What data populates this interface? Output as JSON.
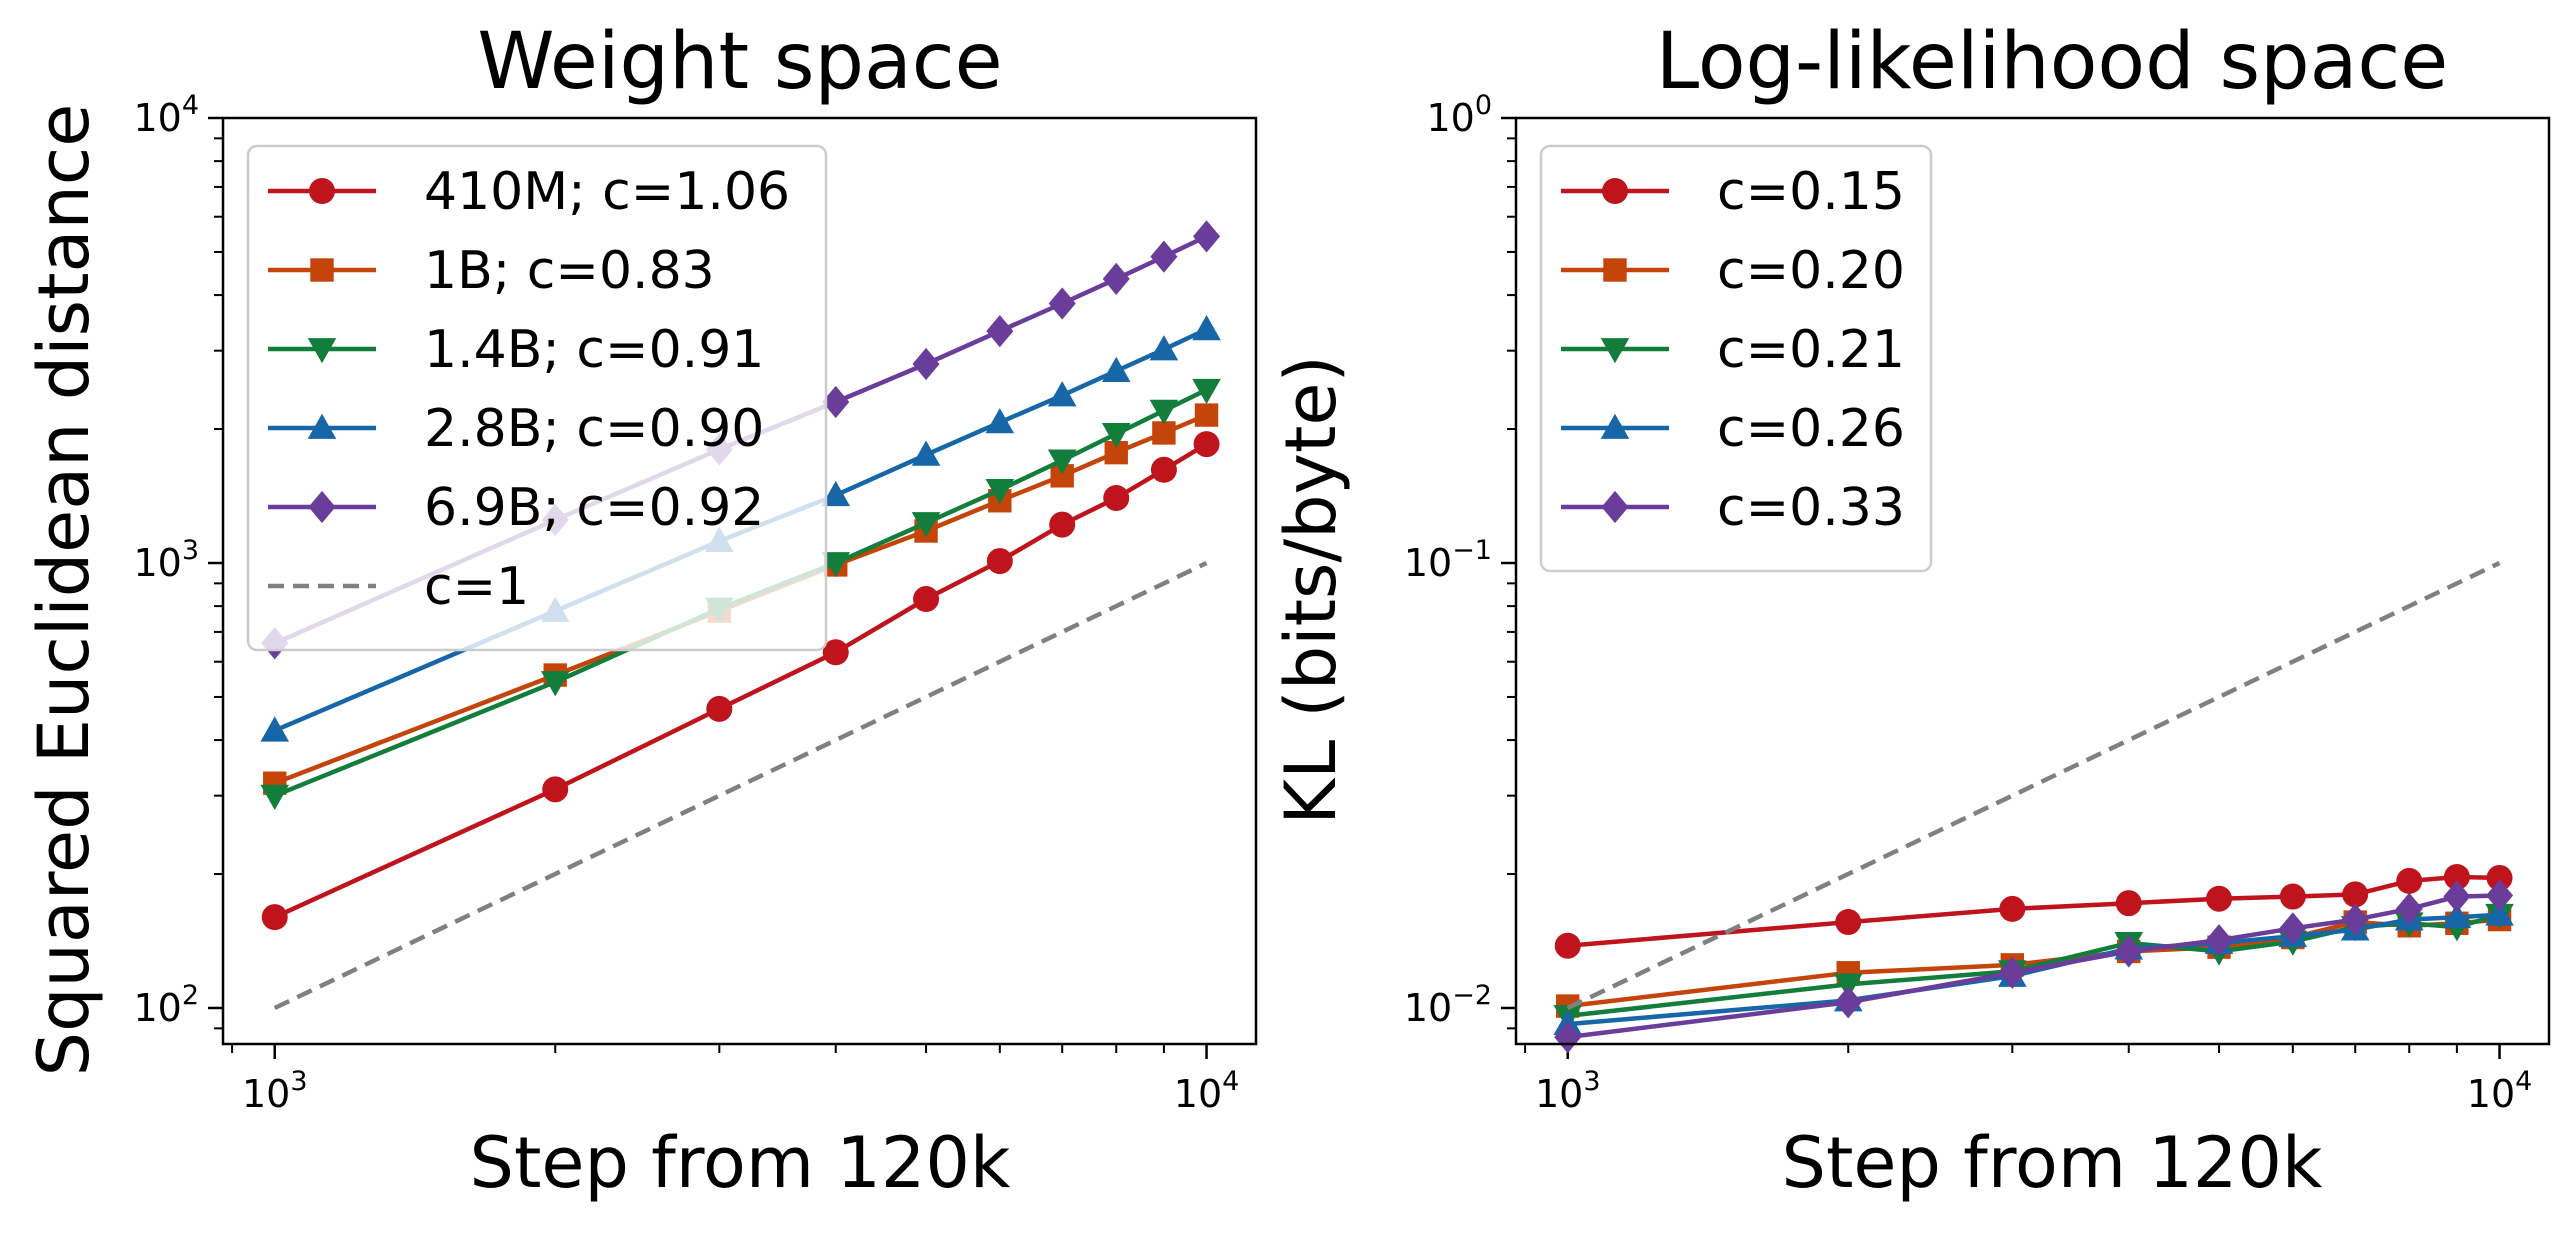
{
  "chart_data": [
    {
      "id": "weight",
      "type": "line",
      "scale": "log-log",
      "title": "Weight space",
      "xlabel": "Step from 120k",
      "ylabel": "Squared Euclidean distance",
      "xlim": [
        880,
        11300
      ],
      "ylim": [
        83,
        10000
      ],
      "xticks": [
        {
          "base": "10",
          "exp": "3",
          "value": 1000
        },
        {
          "base": "10",
          "exp": "4",
          "value": 10000
        }
      ],
      "yticks": [
        {
          "base": "10",
          "exp": "2",
          "value": 100
        },
        {
          "base": "10",
          "exp": "3",
          "value": 1000
        },
        {
          "base": "10",
          "exp": "4",
          "value": 10000
        }
      ],
      "legend_position": "top-left",
      "x": [
        1000,
        2000,
        3000,
        4000,
        5000,
        6000,
        7000,
        8000,
        9000,
        10000
      ],
      "series": [
        {
          "name": "410M; c=1.06",
          "color": "#c0141c",
          "marker": "circle",
          "values": [
            160,
            310,
            470,
            630,
            830,
            1010,
            1220,
            1400,
            1620,
            1850
          ]
        },
        {
          "name": "1B; c=0.83",
          "color": "#c4440a",
          "marker": "square",
          "values": [
            320,
            560,
            780,
            990,
            1180,
            1380,
            1570,
            1770,
            1960,
            2150
          ]
        },
        {
          "name": "1.4B; c=0.91",
          "color": "#137d3c",
          "marker": "triangle-down",
          "values": [
            300,
            540,
            790,
            1000,
            1230,
            1460,
            1700,
            1950,
            2200,
            2450
          ]
        },
        {
          "name": "2.8B; c=0.90",
          "color": "#1766a8",
          "marker": "triangle-up",
          "values": [
            420,
            780,
            1120,
            1420,
            1750,
            2070,
            2380,
            2700,
            3020,
            3350
          ]
        },
        {
          "name": "6.9B; c=0.92",
          "color": "#6a3d9a",
          "marker": "diamond",
          "values": [
            660,
            1250,
            1800,
            2300,
            2800,
            3320,
            3830,
            4350,
            4880,
            5420
          ]
        },
        {
          "name": "c=1",
          "color": "#808080",
          "marker": "none",
          "dashed": true,
          "values": [
            100,
            200,
            300,
            400,
            500,
            600,
            700,
            800,
            900,
            1000
          ]
        }
      ]
    },
    {
      "id": "loglik",
      "type": "line",
      "scale": "log-log",
      "title": "Log-likelihood space",
      "xlabel": "Step from 120k",
      "ylabel": "KL (bits/byte)",
      "xlim": [
        880,
        11300
      ],
      "ylim": [
        0.0083,
        1
      ],
      "xticks": [
        {
          "base": "10",
          "exp": "3",
          "value": 1000
        },
        {
          "base": "10",
          "exp": "4",
          "value": 10000
        }
      ],
      "yticks": [
        {
          "base": "10",
          "exp": "−2",
          "value": 0.01
        },
        {
          "base": "10",
          "exp": "−1",
          "value": 0.1
        },
        {
          "base": "10",
          "exp": "0",
          "value": 1
        }
      ],
      "legend_position": "top-left",
      "x": [
        1000,
        2000,
        3000,
        4000,
        5000,
        6000,
        7000,
        8000,
        9000,
        10000
      ],
      "series": [
        {
          "name": "c=0.15",
          "color": "#c0141c",
          "marker": "circle",
          "values": [
            0.0138,
            0.0156,
            0.0167,
            0.0172,
            0.0176,
            0.0178,
            0.018,
            0.0193,
            0.0197,
            0.0196
          ]
        },
        {
          "name": "c=0.20",
          "color": "#c4440a",
          "marker": "square",
          "values": [
            0.0101,
            0.012,
            0.0125,
            0.0134,
            0.0137,
            0.0144,
            0.0156,
            0.0153,
            0.0155,
            0.0158
          ]
        },
        {
          "name": "c=0.21",
          "color": "#137d3c",
          "marker": "triangle-down",
          "values": [
            0.0096,
            0.0113,
            0.0121,
            0.014,
            0.0134,
            0.0141,
            0.0152,
            0.0155,
            0.0152,
            0.0162
          ]
        },
        {
          "name": "c=0.26",
          "color": "#1766a8",
          "marker": "triangle-up",
          "values": [
            0.0092,
            0.0104,
            0.0118,
            0.0136,
            0.014,
            0.0145,
            0.015,
            0.0158,
            0.016,
            0.0162
          ]
        },
        {
          "name": "c=0.33",
          "color": "#6a3d9a",
          "marker": "diamond",
          "values": [
            0.0086,
            0.0103,
            0.012,
            0.0134,
            0.0142,
            0.0151,
            0.0158,
            0.0167,
            0.0178,
            0.0179
          ]
        },
        {
          "name": "",
          "color": "#808080",
          "marker": "none",
          "dashed": true,
          "values": [
            0.01,
            0.02,
            0.03,
            0.04,
            0.05,
            0.06,
            0.07,
            0.08,
            0.09,
            0.1
          ]
        }
      ]
    }
  ]
}
